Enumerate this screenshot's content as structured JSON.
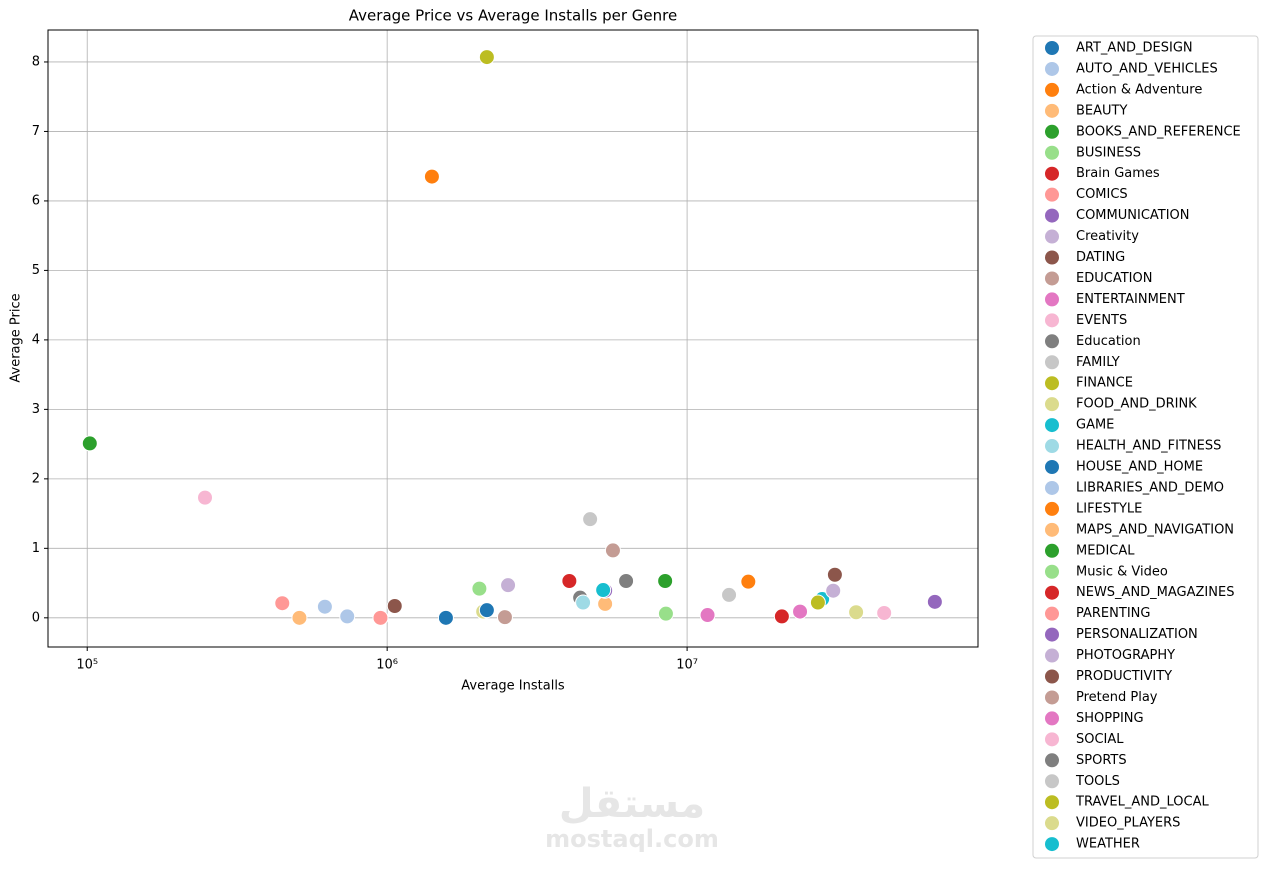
{
  "chart_data": {
    "type": "scatter",
    "title": "Average Price vs Average Installs per Genre",
    "x_label": "Average Installs",
    "y_label": "Average Price",
    "xscale": "log",
    "grid": true,
    "legend": "outside right",
    "xlim": [
      74000,
      93300000
    ],
    "ylim": [
      -0.42,
      8.46
    ],
    "xticks": [
      {
        "value": 100000,
        "label": "10⁵"
      },
      {
        "value": 1000000,
        "label": "10⁶"
      },
      {
        "value": 10000000,
        "label": "10⁷"
      }
    ],
    "yticks": [
      0,
      1,
      2,
      3,
      4,
      5,
      6,
      7,
      8
    ],
    "series": [
      {
        "name": "ART_AND_DESIGN",
        "color": "#1f77b4",
        "x": [
          1570000
        ],
        "values": [
          0.0
        ]
      },
      {
        "name": "AUTO_AND_VEHICLES",
        "color": "#aec7e8",
        "x": [
          620000
        ],
        "values": [
          0.16
        ]
      },
      {
        "name": "Action & Adventure",
        "color": "#ff7f0e",
        "x": [
          1410000
        ],
        "values": [
          6.35
        ]
      },
      {
        "name": "BEAUTY",
        "color": "#ffbb78",
        "x": [
          510000
        ],
        "values": [
          0.0
        ]
      },
      {
        "name": "BOOKS_AND_REFERENCE",
        "color": "#2ca02c",
        "x": [
          8450000
        ],
        "values": [
          0.53
        ]
      },
      {
        "name": "BUSINESS",
        "color": "#98df8a",
        "x": [
          2030000
        ],
        "values": [
          0.42
        ]
      },
      {
        "name": "Brain Games",
        "color": "#d62728",
        "x": [
          4050000
        ],
        "values": [
          0.53
        ]
      },
      {
        "name": "COMICS",
        "color": "#ff9896",
        "x": [
          950000
        ],
        "values": [
          0.0
        ]
      },
      {
        "name": "COMMUNICATION",
        "color": "#9467bd",
        "x": [
          67000000
        ],
        "values": [
          0.23
        ]
      },
      {
        "name": "Creativity",
        "color": "#c5b0d5",
        "x": [
          2530000
        ],
        "values": [
          0.47
        ]
      },
      {
        "name": "DATING",
        "color": "#8c564b",
        "x": [
          1060000
        ],
        "values": [
          0.17
        ]
      },
      {
        "name": "EDUCATION",
        "color": "#c49c94",
        "x": [
          2470000
        ],
        "values": [
          0.01
        ]
      },
      {
        "name": "ENTERTAINMENT",
        "color": "#e377c2",
        "x": [
          11700000
        ],
        "values": [
          0.04
        ]
      },
      {
        "name": "EVENTS",
        "color": "#f7b6d2",
        "x": [
          247000
        ],
        "values": [
          1.73
        ]
      },
      {
        "name": "Education",
        "color": "#7f7f7f",
        "x": [
          4400000
        ],
        "values": [
          0.29
        ]
      },
      {
        "name": "FAMILY",
        "color": "#c7c7c7",
        "x": [
          4750000
        ],
        "values": [
          1.42
        ]
      },
      {
        "name": "FINANCE",
        "color": "#bcbd22",
        "x": [
          2150000
        ],
        "values": [
          8.07
        ]
      },
      {
        "name": "FOOD_AND_DRINK",
        "color": "#dbdb8d",
        "x": [
          2090000
        ],
        "values": [
          0.09
        ]
      },
      {
        "name": "GAME",
        "color": "#17becf",
        "x": [
          28200000
        ],
        "values": [
          0.27
        ]
      },
      {
        "name": "HEALTH_AND_FITNESS",
        "color": "#9edae5",
        "x": [
          4500000
        ],
        "values": [
          0.22
        ]
      },
      {
        "name": "HOUSE_AND_HOME",
        "color": "#1f77b4",
        "x": [
          2150000
        ],
        "values": [
          0.11
        ]
      },
      {
        "name": "LIBRARIES_AND_DEMO",
        "color": "#aec7e8",
        "x": [
          736000
        ],
        "values": [
          0.02
        ]
      },
      {
        "name": "LIFESTYLE",
        "color": "#ff7f0e",
        "x": [
          16000000
        ],
        "values": [
          0.52
        ]
      },
      {
        "name": "MAPS_AND_NAVIGATION",
        "color": "#ffbb78",
        "x": [
          5330000
        ],
        "values": [
          0.2
        ]
      },
      {
        "name": "MEDICAL",
        "color": "#2ca02c",
        "x": [
          102000
        ],
        "values": [
          2.51
        ]
      },
      {
        "name": "Music & Video",
        "color": "#98df8a",
        "x": [
          8500000
        ],
        "values": [
          0.06
        ]
      },
      {
        "name": "NEWS_AND_MAGAZINES",
        "color": "#d62728",
        "x": [
          20700000
        ],
        "values": [
          0.02
        ]
      },
      {
        "name": "PARENTING",
        "color": "#ff9896",
        "x": [
          447000
        ],
        "values": [
          0.21
        ]
      },
      {
        "name": "PERSONALIZATION",
        "color": "#9467bd",
        "x": [
          5330000
        ],
        "values": [
          0.39
        ]
      },
      {
        "name": "PHOTOGRAPHY",
        "color": "#c5b0d5",
        "x": [
          30700000
        ],
        "values": [
          0.39
        ]
      },
      {
        "name": "PRODUCTIVITY",
        "color": "#8c564b",
        "x": [
          31100000
        ],
        "values": [
          0.62
        ]
      },
      {
        "name": "Pretend Play",
        "color": "#c49c94",
        "x": [
          5660000
        ],
        "values": [
          0.97
        ]
      },
      {
        "name": "SHOPPING",
        "color": "#e377c2",
        "x": [
          23800000
        ],
        "values": [
          0.09
        ]
      },
      {
        "name": "SOCIAL",
        "color": "#f7b6d2",
        "x": [
          45400000
        ],
        "values": [
          0.07
        ]
      },
      {
        "name": "SPORTS",
        "color": "#7f7f7f",
        "x": [
          6260000
        ],
        "values": [
          0.53
        ]
      },
      {
        "name": "TOOLS",
        "color": "#c7c7c7",
        "x": [
          13800000
        ],
        "values": [
          0.33
        ]
      },
      {
        "name": "TRAVEL_AND_LOCAL",
        "color": "#bcbd22",
        "x": [
          27300000
        ],
        "values": [
          0.22
        ]
      },
      {
        "name": "VIDEO_PLAYERS",
        "color": "#dbdb8d",
        "x": [
          36600000
        ],
        "values": [
          0.08
        ]
      },
      {
        "name": "WEATHER",
        "color": "#17becf",
        "x": [
          5250000
        ],
        "values": [
          0.4
        ]
      }
    ]
  },
  "watermark": {
    "arabic": "مستقل",
    "latin": "mostaql.com"
  }
}
